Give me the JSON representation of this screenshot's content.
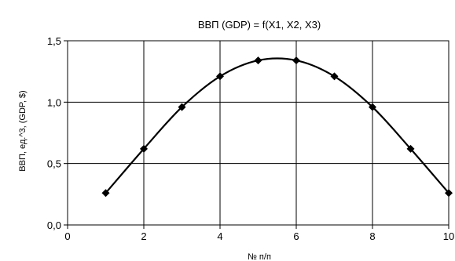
{
  "chart_data": {
    "type": "line",
    "title": "ВВП (GDP) = f(X1, X2, X3)",
    "xlabel": "№ п/п",
    "ylabel": "ВВП, ед.^3, (GDP, $)",
    "xlim": [
      0,
      10
    ],
    "ylim": [
      0,
      1.5
    ],
    "x_ticks": [
      "0",
      "2",
      "4",
      "6",
      "8",
      "10"
    ],
    "y_ticks": [
      "0,0",
      "0,5",
      "1,0",
      "1,5"
    ],
    "grid": true,
    "legend": "none",
    "series": [
      {
        "x": [
          1,
          2,
          3,
          4,
          5,
          6,
          7,
          8,
          9,
          10
        ],
        "values": [
          0.26,
          0.62,
          0.96,
          1.21,
          1.34,
          1.34,
          1.21,
          0.96,
          0.62,
          0.26
        ]
      }
    ],
    "colors": {
      "line": "#000000",
      "grid": "#000000"
    }
  }
}
